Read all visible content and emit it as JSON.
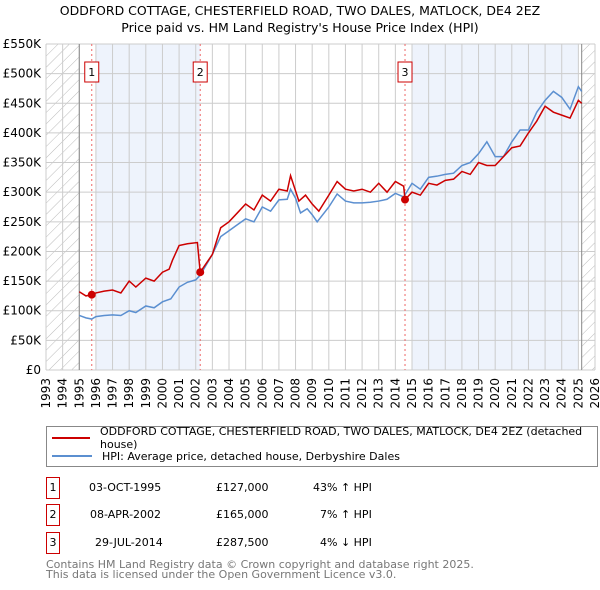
{
  "title_line1": "ODDFORD COTTAGE, CHESTERFIELD ROAD, TWO DALES, MATLOCK, DE4 2EZ",
  "title_line2": "Price paid vs. HM Land Registry's House Price Index (HPI)",
  "chart_data": {
    "type": "line",
    "title": "Price paid vs. HM Land Registry's House Price Index (HPI)",
    "xlim": [
      1993,
      2026
    ],
    "ylim": [
      0,
      550000
    ],
    "yticks": [
      0,
      50000,
      100000,
      150000,
      200000,
      250000,
      300000,
      350000,
      400000,
      450000,
      500000,
      550000
    ],
    "ytick_labels": [
      "£0",
      "£50K",
      "£100K",
      "£150K",
      "£200K",
      "£250K",
      "£300K",
      "£350K",
      "£400K",
      "£450K",
      "£500K",
      "£550K"
    ],
    "xticks": [
      1993,
      1994,
      1995,
      1996,
      1997,
      1998,
      1999,
      2000,
      2001,
      2002,
      2003,
      2004,
      2005,
      2006,
      2007,
      2008,
      2009,
      2010,
      2011,
      2012,
      2013,
      2014,
      2015,
      2016,
      2017,
      2018,
      2019,
      2020,
      2021,
      2022,
      2023,
      2024,
      2025,
      2026
    ],
    "grid": true,
    "series": [
      {
        "name": "ODDFORD COTTAGE, CHESTERFIELD ROAD, TWO DALES, MATLOCK, DE4 2EZ (detached house)",
        "color": "#cc0000",
        "x": [
          1995,
          1995.4,
          1995.75,
          1996,
          1996.5,
          1997,
          1997.5,
          1998,
          1998.4,
          1999,
          1999.5,
          2000,
          2000.4,
          2000.6,
          2001,
          2001.5,
          2002.1,
          2002.27,
          2003,
          2003.5,
          2004,
          2004.5,
          2005,
          2005.5,
          2006,
          2006.5,
          2007,
          2007.5,
          2007.7,
          2008.2,
          2008.6,
          2009,
          2009.4,
          2010,
          2010.5,
          2011,
          2011.5,
          2012,
          2012.5,
          2013,
          2013.5,
          2014,
          2014.5,
          2014.58,
          2015,
          2015.5,
          2016,
          2016.5,
          2017,
          2017.5,
          2018,
          2018.5,
          2019,
          2019.5,
          2020,
          2020.5,
          2021,
          2021.5,
          2022,
          2022.5,
          2023,
          2023.5,
          2024,
          2024.5,
          2025,
          2025.2
        ],
        "y": [
          132000,
          125000,
          127000,
          130000,
          133000,
          135000,
          130000,
          150000,
          140000,
          155000,
          150000,
          165000,
          170000,
          185000,
          210000,
          213000,
          215000,
          165000,
          195000,
          240000,
          250000,
          265000,
          280000,
          270000,
          295000,
          285000,
          305000,
          302000,
          328000,
          285000,
          295000,
          280000,
          268000,
          295000,
          318000,
          305000,
          302000,
          305000,
          300000,
          315000,
          300000,
          318000,
          310000,
          287500,
          300000,
          295000,
          315000,
          312000,
          320000,
          322000,
          335000,
          330000,
          350000,
          345000,
          345000,
          360000,
          375000,
          378000,
          400000,
          420000,
          445000,
          435000,
          430000,
          425000,
          455000,
          450000
        ]
      },
      {
        "name": "HPI: Average price, detached house, Derbyshire Dales",
        "color": "#5b8fd0",
        "x": [
          1995,
          1995.4,
          1995.75,
          1996,
          1996.5,
          1997,
          1997.5,
          1998,
          1998.4,
          1999,
          1999.5,
          2000,
          2000.5,
          2001,
          2001.5,
          2002,
          2002.27,
          2003,
          2003.5,
          2004,
          2004.5,
          2005,
          2005.5,
          2006,
          2006.5,
          2007,
          2007.5,
          2007.7,
          2008,
          2008.3,
          2008.7,
          2009,
          2009.3,
          2010,
          2010.5,
          2011,
          2011.5,
          2012,
          2012.5,
          2013,
          2013.5,
          2014,
          2014.5,
          2015,
          2015.5,
          2016,
          2016.5,
          2017,
          2017.5,
          2018,
          2018.5,
          2019,
          2019.5,
          2020,
          2020.5,
          2021,
          2021.5,
          2022,
          2022.5,
          2023,
          2023.5,
          2024,
          2024.5,
          2025,
          2025.2
        ],
        "y": [
          92000,
          88000,
          86000,
          90000,
          92000,
          93000,
          92000,
          100000,
          97000,
          108000,
          105000,
          115000,
          120000,
          140000,
          148000,
          152000,
          160000,
          195000,
          225000,
          235000,
          245000,
          255000,
          250000,
          275000,
          268000,
          287000,
          288000,
          305000,
          290000,
          265000,
          272000,
          262000,
          250000,
          275000,
          297000,
          285000,
          282000,
          282000,
          283000,
          285000,
          288000,
          298000,
          292000,
          315000,
          305000,
          325000,
          327000,
          330000,
          332000,
          345000,
          350000,
          365000,
          385000,
          360000,
          360000,
          385000,
          405000,
          405000,
          435000,
          455000,
          470000,
          460000,
          440000,
          478000,
          470000
        ]
      }
    ],
    "sales": [
      {
        "label": "1",
        "x": 1995.75,
        "y": 127000
      },
      {
        "label": "2",
        "x": 2002.27,
        "y": 165000
      },
      {
        "label": "3",
        "x": 2014.58,
        "y": 287500
      }
    ],
    "shaded_ranges": [
      [
        1996,
        2002.27
      ],
      [
        2015,
        2025
      ]
    ],
    "hatched_ranges": [
      [
        1993,
        1995
      ],
      [
        2025.2,
        2026
      ]
    ]
  },
  "legend": [
    "ODDFORD COTTAGE, CHESTERFIELD ROAD, TWO DALES, MATLOCK, DE4 2EZ (detached house)",
    "HPI: Average price, detached house, Derbyshire Dales"
  ],
  "transactions": [
    {
      "num": "1",
      "date": "03-OCT-1995",
      "price": "£127,000",
      "hpi": "43% ↑ HPI"
    },
    {
      "num": "2",
      "date": "08-APR-2002",
      "price": "£165,000",
      "hpi": "7% ↑ HPI"
    },
    {
      "num": "3",
      "date": "29-JUL-2014",
      "price": "£287,500",
      "hpi": "4% ↓ HPI"
    }
  ],
  "footer_line1": "Contains HM Land Registry data © Crown copyright and database right 2025.",
  "footer_line2": "This data is licensed under the Open Government Licence v3.0."
}
